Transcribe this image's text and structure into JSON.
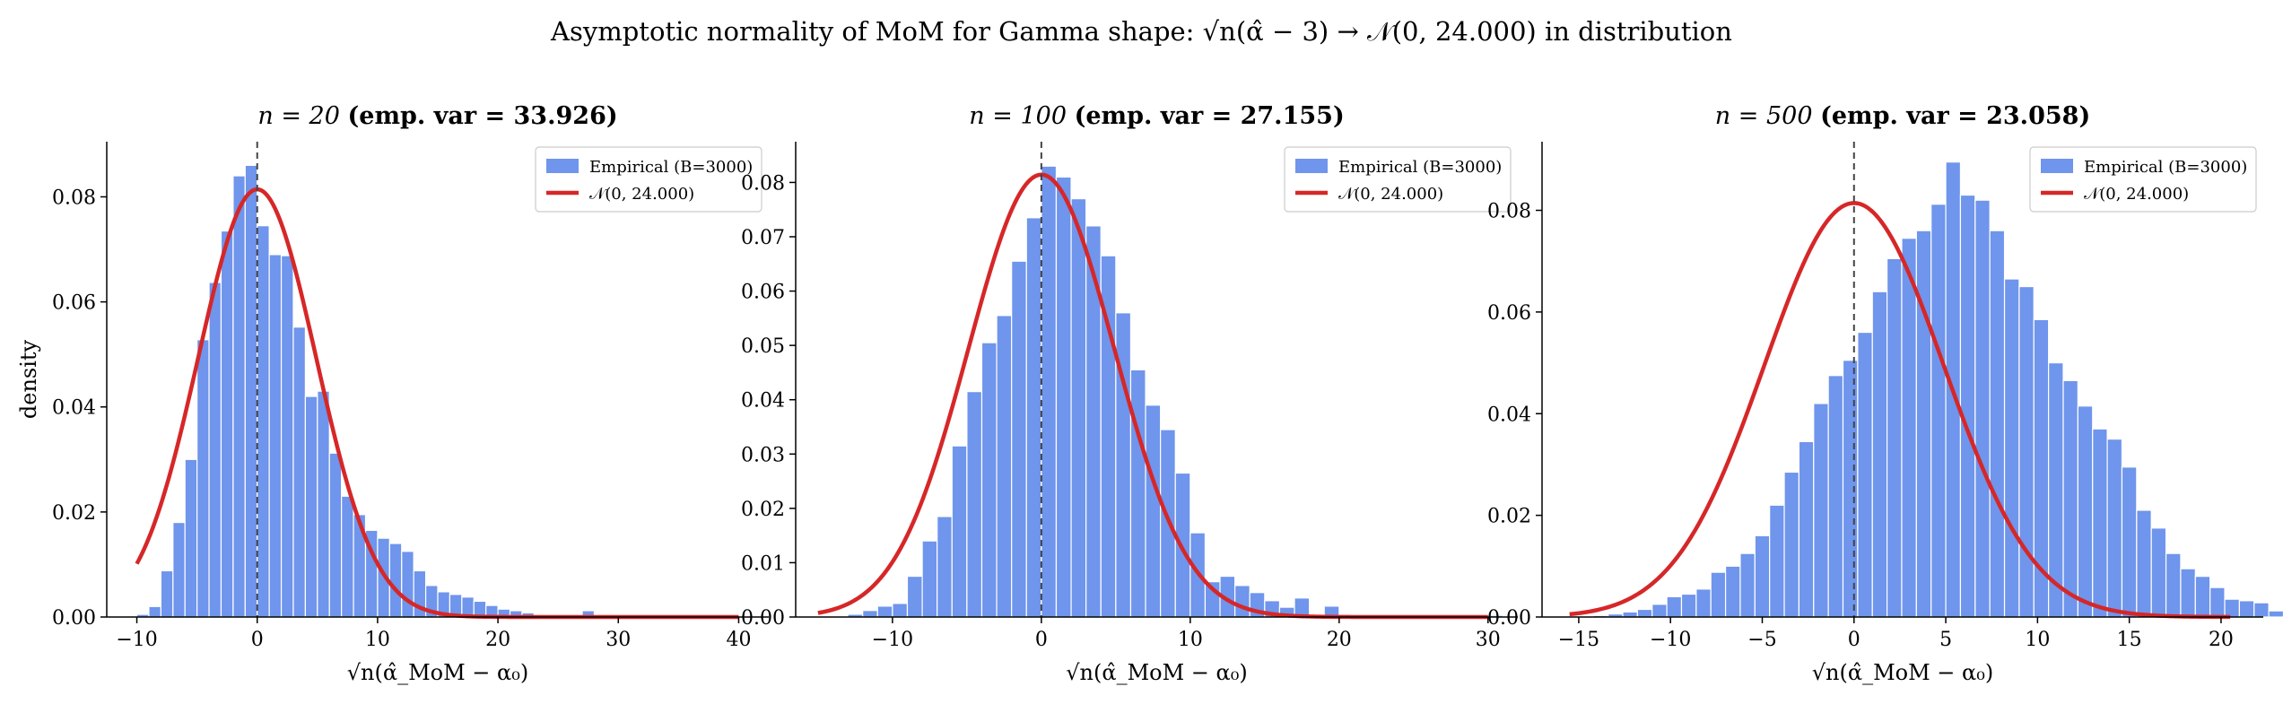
{
  "figure": {
    "title": "Asymptotic normality of MoM for Gamma shape: √n(α̂ − 3) → 𝒩(0, 24.000) in distribution"
  },
  "colors": {
    "hist": "#6f95ec",
    "hist_edge": "#ffffff",
    "normal": "#d62728",
    "vline": "#444444"
  },
  "chart_data": [
    {
      "type": "bar",
      "title_n": "n = 20",
      "title_var": "(emp. var = 33.926)",
      "xlabel": "√n(α̂_MoM − α₀)",
      "ylabel": "density",
      "xlim": [
        -12.5,
        42.5
      ],
      "ylim": [
        0,
        0.0905
      ],
      "xticks": [
        -10,
        0,
        10,
        20,
        30,
        40
      ],
      "yticks": [
        0.0,
        0.02,
        0.04,
        0.06,
        0.08
      ],
      "ytick_decimals": 2,
      "bin_start": -10.0,
      "bin_width": 1.0,
      "values": [
        0.0005,
        0.002,
        0.0088,
        0.018,
        0.03,
        0.0528,
        0.0637,
        0.0735,
        0.084,
        0.086,
        0.0745,
        0.069,
        0.0688,
        0.0552,
        0.042,
        0.043,
        0.0312,
        0.023,
        0.0195,
        0.0165,
        0.015,
        0.014,
        0.0125,
        0.0088,
        0.006,
        0.0048,
        0.0043,
        0.0038,
        0.003,
        0.0022,
        0.0015,
        0.0012,
        0.0008,
        0.0003,
        0.0,
        0.0,
        0.0,
        0.0012,
        0.0003,
        0.0,
        0.0,
        0.0,
        0.0,
        0.0,
        0.0,
        0.0,
        0.0,
        0.0,
        0.0,
        0.0003
      ],
      "normal_var": 24.0,
      "normal_range": [
        -10,
        40
      ],
      "vline_x": 0,
      "legend": [
        "Empirical (B=3000)",
        "𝒩(0, 24.000)"
      ],
      "legend_position": "top-right"
    },
    {
      "type": "bar",
      "title_n": "n = 100",
      "title_var": "(emp. var = 27.155)",
      "xlabel": "√n(α̂_MoM − α₀)",
      "ylabel": "",
      "xlim": [
        -16.5,
        32.0
      ],
      "ylim": [
        0,
        0.0875
      ],
      "xticks": [
        -10,
        0,
        10,
        20,
        30
      ],
      "yticks": [
        0.0,
        0.01,
        0.02,
        0.03,
        0.04,
        0.05,
        0.06,
        0.07,
        0.08
      ],
      "ytick_decimals": 2,
      "bin_start": -15.0,
      "bin_width": 1.0,
      "values": [
        0.0,
        0.0,
        0.0005,
        0.0012,
        0.002,
        0.0025,
        0.0075,
        0.014,
        0.0185,
        0.0315,
        0.0415,
        0.0505,
        0.0555,
        0.0655,
        0.0735,
        0.083,
        0.081,
        0.077,
        0.072,
        0.0665,
        0.056,
        0.0455,
        0.039,
        0.0345,
        0.0265,
        0.0155,
        0.0065,
        0.0075,
        0.0058,
        0.0045,
        0.003,
        0.0018,
        0.0035,
        0.0005,
        0.002,
        0.0,
        0.0,
        0.0,
        0.0,
        0.0,
        0.0,
        0.0,
        0.0,
        0.0,
        0.0,
        0.0003
      ],
      "normal_var": 24.0,
      "normal_range": [
        -15,
        30
      ],
      "vline_x": 0,
      "legend": [
        "Empirical (B=3000)",
        "𝒩(0, 24.000)"
      ],
      "legend_position": "top-right"
    },
    {
      "type": "bar",
      "title_n": "n = 500",
      "title_var": "(emp. var = 23.058)",
      "xlabel": "√n(α̂_MoM − α₀)",
      "ylabel": "",
      "xlim": [
        -17.0,
        22.3
      ],
      "ylim": [
        0,
        0.0935
      ],
      "xticks": [
        -15,
        -10,
        -5,
        0,
        5,
        10,
        15,
        20
      ],
      "yticks": [
        0.0,
        0.02,
        0.04,
        0.06,
        0.08
      ],
      "ytick_decimals": 2,
      "bin_start": -15.0,
      "bin_width": 0.8,
      "values": [
        0.0002,
        0.0003,
        0.0006,
        0.001,
        0.0015,
        0.0025,
        0.004,
        0.0045,
        0.0055,
        0.0088,
        0.01,
        0.0125,
        0.016,
        0.022,
        0.0285,
        0.0345,
        0.042,
        0.0475,
        0.0505,
        0.056,
        0.064,
        0.0705,
        0.0745,
        0.076,
        0.0812,
        0.0895,
        0.083,
        0.082,
        0.076,
        0.0665,
        0.065,
        0.0585,
        0.05,
        0.0465,
        0.0415,
        0.037,
        0.035,
        0.0295,
        0.021,
        0.0175,
        0.0125,
        0.0095,
        0.008,
        0.0058,
        0.0035,
        0.0032,
        0.0028,
        0.0012,
        0.0008,
        0.0004
      ],
      "normal_var": 24.0,
      "normal_range": [
        -15.5,
        20.5
      ],
      "vline_x": 0,
      "legend": [
        "Empirical (B=3000)",
        "𝒩(0, 24.000)"
      ],
      "legend_position": "top-right"
    }
  ]
}
